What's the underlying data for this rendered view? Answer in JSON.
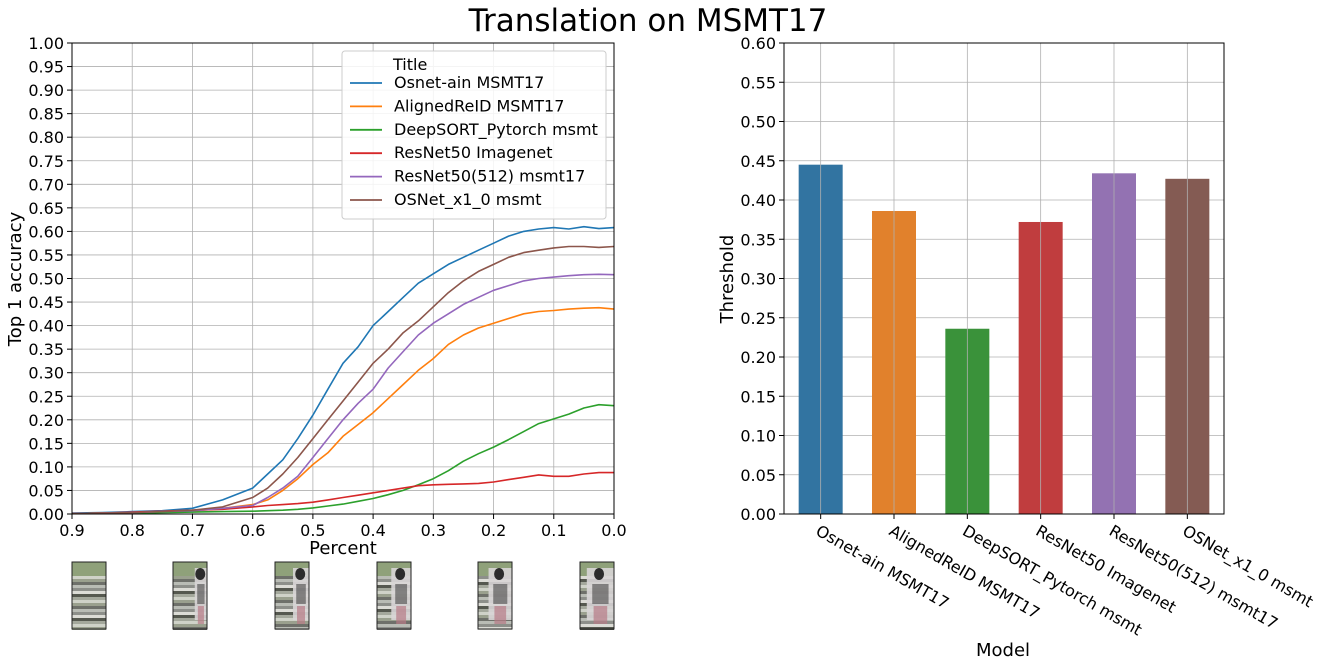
{
  "figure": {
    "suptitle": "Translation on MSMT17"
  },
  "chart_data": [
    {
      "type": "line",
      "xlabel": "Percent",
      "ylabel": "Top 1 accuracy",
      "xlim": [
        0.9,
        0.0
      ],
      "ylim": [
        0.0,
        1.0
      ],
      "grid": true,
      "xticks": [
        "0.9",
        "0.8",
        "0.7",
        "0.6",
        "0.5",
        "0.4",
        "0.3",
        "0.2",
        "0.1",
        "0.0"
      ],
      "yticks": [
        "0.00",
        "0.05",
        "0.10",
        "0.15",
        "0.20",
        "0.25",
        "0.30",
        "0.35",
        "0.40",
        "0.45",
        "0.50",
        "0.55",
        "0.60",
        "0.65",
        "0.70",
        "0.75",
        "0.80",
        "0.85",
        "0.90",
        "0.95",
        "1.00"
      ],
      "legend": {
        "title": "Title",
        "location": "upper right"
      },
      "x": [
        0.9,
        0.85,
        0.8,
        0.75,
        0.7,
        0.65,
        0.6,
        0.575,
        0.55,
        0.525,
        0.5,
        0.475,
        0.45,
        0.425,
        0.4,
        0.375,
        0.35,
        0.325,
        0.3,
        0.275,
        0.25,
        0.225,
        0.2,
        0.175,
        0.15,
        0.125,
        0.1,
        0.075,
        0.05,
        0.025,
        0.0
      ],
      "series": [
        {
          "name": "Osnet-ain MSMT17",
          "color": "#1f77b4",
          "values": [
            0.002,
            0.003,
            0.005,
            0.007,
            0.012,
            0.03,
            0.055,
            0.085,
            0.115,
            0.16,
            0.21,
            0.265,
            0.32,
            0.355,
            0.4,
            0.43,
            0.46,
            0.49,
            0.51,
            0.53,
            0.545,
            0.56,
            0.575,
            0.59,
            0.6,
            0.605,
            0.608,
            0.605,
            0.61,
            0.606,
            0.608
          ]
        },
        {
          "name": "AlignedReID MSMT17",
          "color": "#ff7f0e",
          "values": [
            0.001,
            0.002,
            0.003,
            0.004,
            0.006,
            0.012,
            0.02,
            0.03,
            0.05,
            0.075,
            0.105,
            0.13,
            0.165,
            0.19,
            0.215,
            0.245,
            0.275,
            0.305,
            0.33,
            0.36,
            0.38,
            0.395,
            0.405,
            0.415,
            0.425,
            0.43,
            0.432,
            0.435,
            0.437,
            0.438,
            0.435
          ]
        },
        {
          "name": "DeepSORT_Pytorch msmt",
          "color": "#2ca02c",
          "values": [
            0.001,
            0.002,
            0.002,
            0.003,
            0.004,
            0.005,
            0.006,
            0.007,
            0.008,
            0.01,
            0.013,
            0.017,
            0.021,
            0.027,
            0.033,
            0.041,
            0.05,
            0.062,
            0.075,
            0.092,
            0.112,
            0.128,
            0.142,
            0.158,
            0.175,
            0.192,
            0.202,
            0.212,
            0.225,
            0.232,
            0.23
          ]
        },
        {
          "name": "ResNet50 Imagenet",
          "color": "#d62728",
          "values": [
            0.001,
            0.002,
            0.004,
            0.006,
            0.008,
            0.01,
            0.015,
            0.018,
            0.02,
            0.022,
            0.025,
            0.03,
            0.035,
            0.04,
            0.045,
            0.05,
            0.055,
            0.06,
            0.062,
            0.063,
            0.064,
            0.065,
            0.068,
            0.073,
            0.078,
            0.083,
            0.08,
            0.08,
            0.085,
            0.088,
            0.088
          ]
        },
        {
          "name": "ResNet50(512) msmt17",
          "color": "#9467bd",
          "values": [
            0.001,
            0.002,
            0.003,
            0.005,
            0.007,
            0.012,
            0.018,
            0.035,
            0.055,
            0.08,
            0.12,
            0.16,
            0.2,
            0.235,
            0.265,
            0.31,
            0.345,
            0.38,
            0.405,
            0.425,
            0.445,
            0.46,
            0.475,
            0.485,
            0.495,
            0.5,
            0.503,
            0.506,
            0.508,
            0.509,
            0.508
          ]
        },
        {
          "name": "OSNet_x1_0 msmt",
          "color": "#8c564b",
          "values": [
            0.001,
            0.002,
            0.003,
            0.005,
            0.008,
            0.015,
            0.035,
            0.055,
            0.085,
            0.12,
            0.16,
            0.2,
            0.24,
            0.28,
            0.32,
            0.35,
            0.385,
            0.41,
            0.44,
            0.47,
            0.495,
            0.515,
            0.53,
            0.545,
            0.555,
            0.56,
            0.565,
            0.568,
            0.568,
            0.566,
            0.568
          ]
        }
      ]
    },
    {
      "type": "bar",
      "xlabel": "Model",
      "ylabel": "Threshold",
      "ylim": [
        0.0,
        0.6
      ],
      "grid": true,
      "yticks": [
        "0.00",
        "0.05",
        "0.10",
        "0.15",
        "0.20",
        "0.25",
        "0.30",
        "0.35",
        "0.40",
        "0.45",
        "0.50",
        "0.55",
        "0.60"
      ],
      "categories": [
        "Osnet-ain MSMT17",
        "AlignedReID MSMT17",
        "DeepSORT_Pytorch msmt",
        "ResNet50 Imagenet",
        "ResNet50(512) msmt17",
        "OSNet_x1_0 msmt"
      ],
      "values": [
        0.445,
        0.386,
        0.236,
        0.372,
        0.434,
        0.427
      ],
      "colors": [
        "#3274a1",
        "#e1812c",
        "#3a923a",
        "#c03d3e",
        "#9372b2",
        "#845b53"
      ]
    }
  ]
}
